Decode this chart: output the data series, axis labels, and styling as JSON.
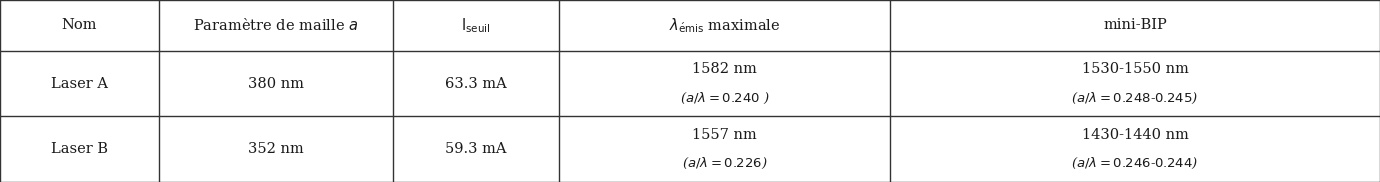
{
  "col_bounds": [
    0.0,
    0.115,
    0.285,
    0.405,
    0.645,
    1.0
  ],
  "row_bounds": [
    1.0,
    0.72,
    0.36,
    0.0
  ],
  "headers": [
    "Nom",
    "Paramètre de maille $a$",
    "$\\mathrm{I}_{\\mathrm{seuil}}$",
    "$\\lambda_{\\mathrm{\\acute{e}mis}}$ maximale",
    "mini-BIP"
  ],
  "rows": [
    {
      "col0": "Laser A",
      "col1": "380 nm",
      "col2": "63.3 mA",
      "col3_line1": "1582 nm",
      "col3_line2": "($a/\\lambda = 0.240$ )",
      "col4_line1": "1530-1550 nm",
      "col4_line2": "($a/\\lambda = 0.248$-$0.245$)"
    },
    {
      "col0": "Laser B",
      "col1": "352 nm",
      "col2": "59.3 mA",
      "col3_line1": "1557 nm",
      "col3_line2": "($a/\\lambda = 0.226$)",
      "col4_line1": "1430-1440 nm",
      "col4_line2": "($a/\\lambda = 0.246$-$0.244$)"
    }
  ],
  "bg_color": "#ffffff",
  "text_color": "#1a1a1a",
  "line_color": "#333333",
  "font_size": 10.5,
  "sub_font_size": 9.5
}
